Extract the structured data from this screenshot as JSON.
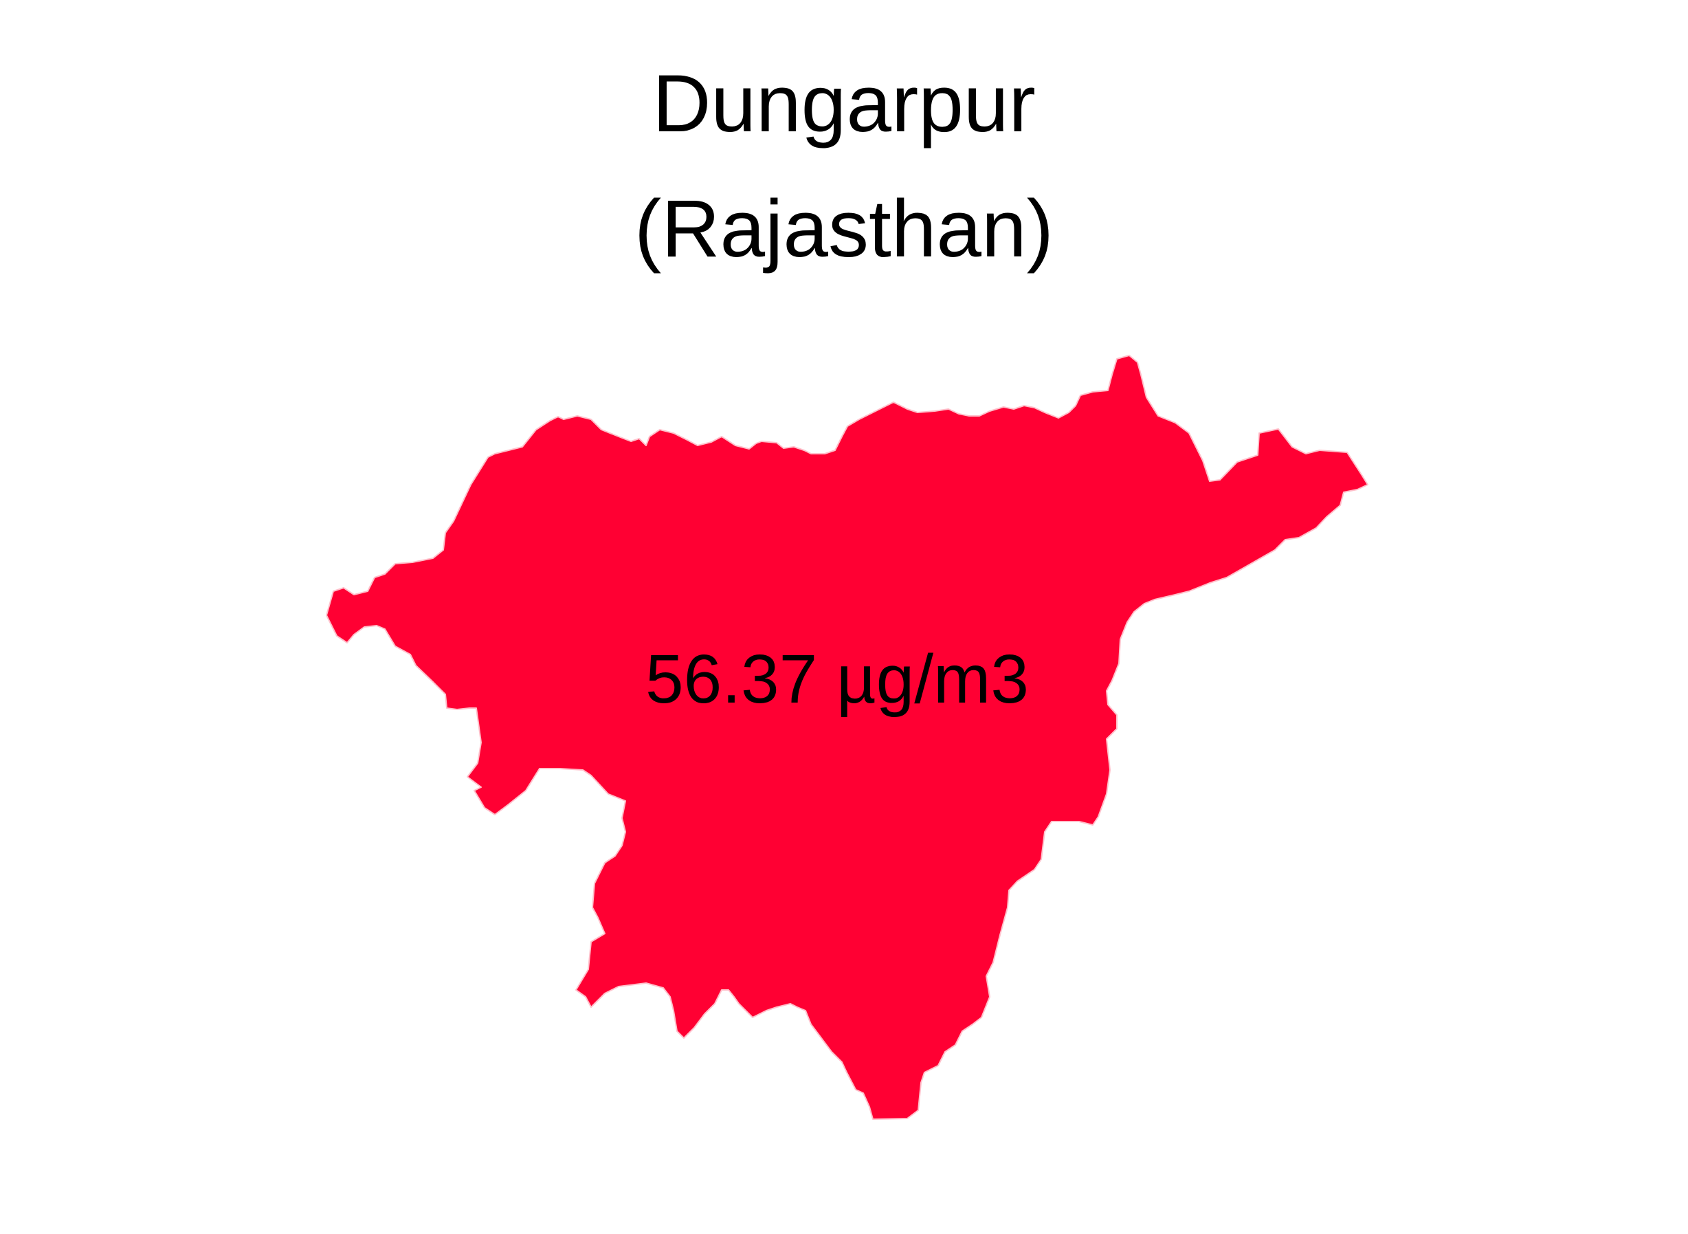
{
  "map": {
    "district": "Dungarpur",
    "state": "(Rajasthan)",
    "value_label": "56.37 µg/m3",
    "fill_color": "#ff0033",
    "outline_color": "#ffc0cb"
  }
}
